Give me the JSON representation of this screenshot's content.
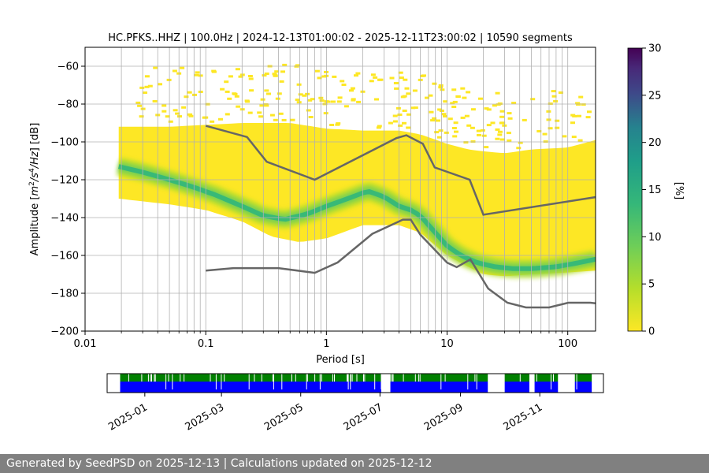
{
  "footer": {
    "text": "Generated by SeedPSD on 2025-12-13 | Calculations updated on 2025-12-12"
  },
  "chart_data": [
    {
      "type": "heatmap",
      "title": "HC.PFKS..HHZ | 100.0Hz | 2024-12-13T01:00:02 - 2025-12-11T23:00:02 | 10590 segments",
      "xlabel": "Period [s]",
      "ylabel": "Amplitude [m²/s⁴/Hz] [dB]",
      "xscale": "log",
      "xlim": [
        0.01,
        170
      ],
      "ylim": [
        -200,
        -50
      ],
      "xticks": [
        0.01,
        0.1,
        1,
        10,
        100
      ],
      "xtick_labels": [
        "0.01",
        "0.1",
        "1",
        "10",
        "100"
      ],
      "yticks": [
        -200,
        -180,
        -160,
        -140,
        -120,
        -100,
        -80,
        -60
      ],
      "ytick_labels": [
        "−200",
        "−180",
        "−160",
        "−140",
        "−120",
        "−100",
        "−80",
        "−60"
      ],
      "grid": true,
      "colorbar": {
        "label": "[%]",
        "range": [
          0,
          30
        ],
        "ticks": [
          0,
          5,
          10,
          15,
          20,
          25,
          30
        ],
        "colormap": "viridis_r"
      },
      "noise_model_color": "#666666",
      "high_noise_model": {
        "x": [
          0.1,
          0.22,
          0.32,
          0.8,
          3.8,
          4.6,
          6.3,
          7.9,
          15.4,
          20,
          354
        ],
        "y": [
          -91.5,
          -97.4,
          -110.5,
          -120,
          -98,
          -96.5,
          -101,
          -113.5,
          -120,
          -138.5,
          -126
        ]
      },
      "low_noise_model": {
        "x": [
          0.1,
          0.17,
          0.4,
          0.8,
          1.24,
          2.4,
          4.3,
          5,
          6,
          10,
          12,
          15.6,
          21.9,
          31.6,
          45,
          70,
          101,
          154,
          328
        ],
        "y": [
          -168,
          -166.7,
          -166.7,
          -169.2,
          -163.7,
          -148.6,
          -141.1,
          -141.1,
          -149,
          -163.8,
          -166.2,
          -162.1,
          -177.5,
          -185,
          -187.5,
          -187.5,
          -185,
          -185,
          -187.5
        ]
      },
      "mode_curve": {
        "x": [
          0.019,
          0.03,
          0.05,
          0.08,
          0.12,
          0.2,
          0.3,
          0.45,
          0.7,
          1,
          1.5,
          2.2,
          3,
          4,
          5,
          6,
          8,
          10,
          13,
          18,
          25,
          35,
          50,
          80,
          120,
          170
        ],
        "y": [
          -113,
          -116,
          -120,
          -124,
          -128,
          -134,
          -139,
          -141,
          -138,
          -134,
          -130,
          -126,
          -129,
          -134,
          -136,
          -139,
          -148,
          -155,
          -160,
          -164,
          -166,
          -167,
          -167,
          -166,
          -164,
          -162
        ]
      },
      "envelope_lower": {
        "x": [
          0.019,
          0.05,
          0.1,
          0.2,
          0.35,
          0.6,
          1,
          2,
          4,
          6,
          10,
          15,
          20,
          30,
          50,
          100,
          170
        ],
        "y": [
          -130,
          -133,
          -136,
          -142,
          -150,
          -153,
          -151,
          -144,
          -144,
          -148,
          -160,
          -166,
          -170,
          -171,
          -170,
          -169,
          -168
        ]
      },
      "envelope_upper": {
        "x": [
          0.019,
          0.05,
          0.1,
          0.2,
          0.5,
          1,
          2,
          4,
          6,
          10,
          15,
          20,
          30,
          50,
          100,
          170
        ],
        "y": [
          -92,
          -92,
          -91,
          -90,
          -90,
          -93,
          -94,
          -94,
          -96,
          -101,
          -104,
          -105,
          -106,
          -104,
          -103,
          -99
        ]
      }
    },
    {
      "type": "timeline",
      "xlim": [
        "2024-12-03",
        "2025-12-20"
      ],
      "xtick_labels": [
        "2025-01",
        "2025-03",
        "2025-05",
        "2025-07",
        "2025-09",
        "2025-11"
      ],
      "xtick_dates": [
        "2025-01-01",
        "2025-03-01",
        "2025-05-01",
        "2025-07-01",
        "2025-09-01",
        "2025-11-01"
      ],
      "data_start": "2024-12-13",
      "data_end": "2025-12-11",
      "gaps": [
        [
          "2025-07-02",
          "2025-07-09"
        ],
        [
          "2025-09-22",
          "2025-10-05"
        ],
        [
          "2025-10-24",
          "2025-10-28"
        ],
        [
          "2025-11-15",
          "2025-11-28"
        ]
      ],
      "color_top": "#008000",
      "color_bottom": "#0000ff"
    }
  ]
}
